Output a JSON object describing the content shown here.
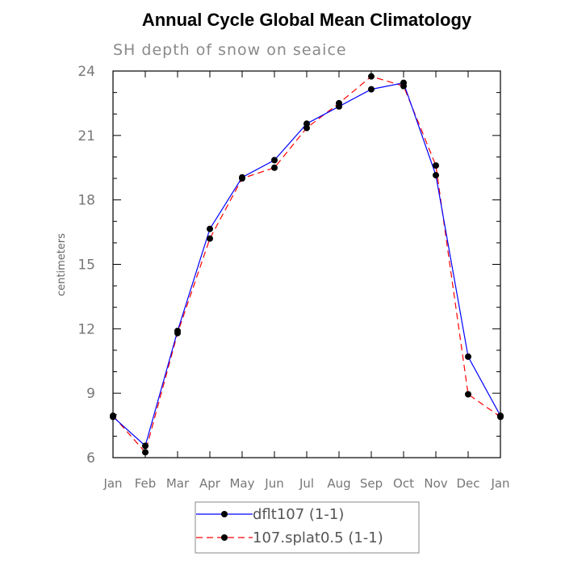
{
  "chart_data": {
    "type": "line",
    "title": "Annual Cycle Global Mean Climatology",
    "subtitle": "SH depth of snow on seaice",
    "xlabel": "",
    "ylabel": "centimeters",
    "categories": [
      "Jan",
      "Feb",
      "Mar",
      "Apr",
      "May",
      "Jun",
      "Jul",
      "Aug",
      "Sep",
      "Oct",
      "Nov",
      "Dec",
      "Jan"
    ],
    "yticks": [
      "6",
      "9",
      "12",
      "15",
      "18",
      "21",
      "24"
    ],
    "ylim": [
      6,
      24
    ],
    "grid": false,
    "legend_position": "bottom",
    "series": [
      {
        "name": "dflt107 (1-1)",
        "color": "#0000ff",
        "style": "solid",
        "marker": "filled-circle",
        "values": [
          7.9,
          6.55,
          11.9,
          16.65,
          19.05,
          19.85,
          21.55,
          22.35,
          23.15,
          23.45,
          19.15,
          10.7,
          7.95
        ]
      },
      {
        "name": "107.splat0.5 (1-1)",
        "color": "#ff0000",
        "style": "dashed",
        "marker": "filled-circle",
        "values": [
          7.95,
          6.25,
          11.8,
          16.2,
          19.0,
          19.5,
          21.35,
          22.5,
          23.75,
          23.3,
          19.6,
          8.95,
          7.9
        ]
      }
    ]
  }
}
